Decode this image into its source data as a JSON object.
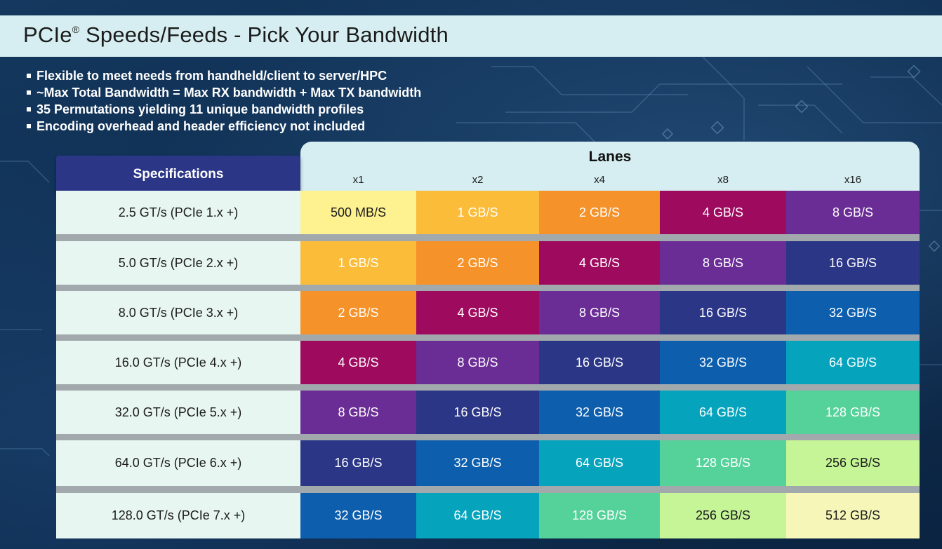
{
  "slide": {
    "title": "PCIe",
    "title_mark": "®",
    "title_rest": " Speeds/Feeds - Pick Your Bandwidth",
    "bullets": [
      "Flexible to meet needs from handheld/client to server/HPC",
      "~Max Total Bandwidth = Max RX bandwidth + Max TX bandwidth",
      "35 Permutations yielding 11 unique bandwidth profiles",
      "Encoding overhead and header efficiency not included"
    ]
  },
  "table": {
    "spec_header": "Specifications",
    "lanes_header": "Lanes",
    "lanes": [
      "x1",
      "x2",
      "x4",
      "x8",
      "x16"
    ],
    "rows": [
      {
        "spec": "2.5 GT/s (PCIe 1.x +)",
        "values": [
          "500 MB/S",
          "1 GB/S",
          "2 GB/S",
          "4 GB/S",
          "8 GB/S"
        ]
      },
      {
        "spec": "5.0 GT/s (PCIe 2.x +)",
        "values": [
          "1 GB/S",
          "2 GB/S",
          "4 GB/S",
          "8 GB/S",
          "16 GB/S"
        ]
      },
      {
        "spec": "8.0 GT/s (PCIe 3.x +)",
        "values": [
          "2 GB/S",
          "4 GB/S",
          "8 GB/S",
          "16 GB/S",
          "32 GB/S"
        ]
      },
      {
        "spec": "16.0 GT/s (PCIe 4.x +)",
        "values": [
          "4 GB/S",
          "8 GB/S",
          "16 GB/S",
          "32 GB/S",
          "64 GB/S"
        ]
      },
      {
        "spec": "32.0 GT/s (PCIe 5.x +)",
        "values": [
          "8 GB/S",
          "16 GB/S",
          "32 GB/S",
          "64 GB/S",
          "128 GB/S"
        ]
      },
      {
        "spec": "64.0 GT/s (PCIe 6.x +)",
        "values": [
          "16 GB/S",
          "32 GB/S",
          "64 GB/S",
          "128 GB/S",
          "256 GB/S"
        ]
      },
      {
        "spec": "128.0 GT/s (PCIe 7.x +)",
        "values": [
          "32 GB/S",
          "64 GB/S",
          "128 GB/S",
          "256 GB/S",
          "512 GB/S"
        ]
      }
    ]
  },
  "colors": {
    "500 MB/S": "#fdf190",
    "1 GB/S": "#fbbc3a",
    "2 GB/S": "#f5922a",
    "4 GB/S": "#9e0b5e",
    "8 GB/S": "#6a2d95",
    "16 GB/S": "#2b3687",
    "32 GB/S": "#0d5fae",
    "64 GB/S": "#06a3bd",
    "128 GB/S": "#55d19a",
    "256 GB/S": "#c5f596",
    "512 GB/S": "#f6f6b8"
  },
  "dark_text_values": [
    "500 MB/S",
    "256 GB/S",
    "512 GB/S"
  ]
}
